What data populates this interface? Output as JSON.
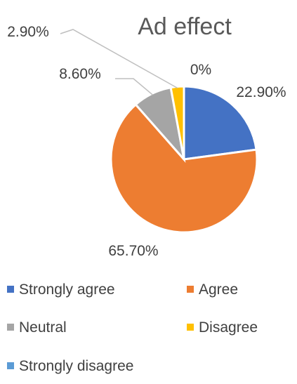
{
  "chart_data": {
    "type": "pie",
    "title": "Ad effect",
    "categories": [
      "Strongly agree",
      "Agree",
      "Neutral",
      "Disagree",
      "Strongly disagree"
    ],
    "values": [
      22.9,
      65.7,
      8.6,
      2.9,
      0
    ],
    "data_labels": [
      "22.90%",
      "65.70%",
      "8.60%",
      "2.90%",
      "0%"
    ],
    "colors": [
      "#4472C4",
      "#ED7D31",
      "#A5A5A5",
      "#FFC000",
      "#5B9BD5"
    ],
    "legend_position": "bottom"
  }
}
